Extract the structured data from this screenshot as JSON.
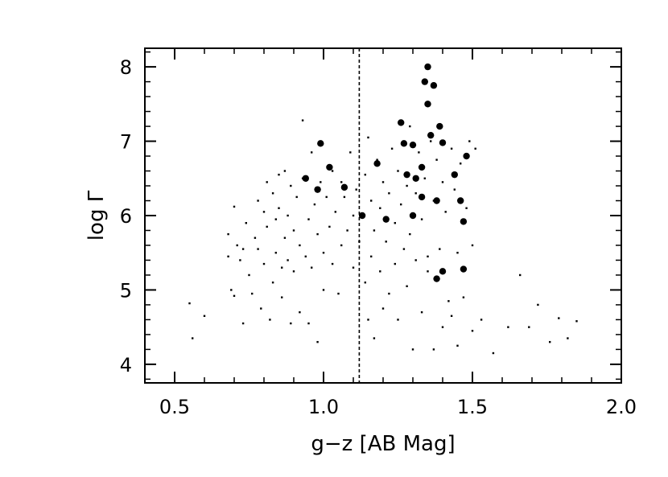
{
  "chart_data": {
    "type": "scatter",
    "xlabel": "g−z [AB Mag]",
    "ylabel": "log Γ",
    "xlim": [
      0.4,
      2.0
    ],
    "ylim": [
      3.75,
      8.25
    ],
    "xticks": [
      0.5,
      1.0,
      1.5,
      2.0
    ],
    "xtick_labels": [
      "0.5",
      "1.0",
      "1.5",
      "2.0"
    ],
    "yticks": [
      4,
      5,
      6,
      7,
      8
    ],
    "ytick_labels": [
      "4",
      "5",
      "6",
      "7",
      "8"
    ],
    "grid": false,
    "reference_line": {
      "x": 1.12,
      "style": "dashed"
    },
    "series": [
      {
        "marker": "small-dot",
        "points": [
          [
            0.55,
            4.82
          ],
          [
            0.56,
            4.35
          ],
          [
            0.6,
            4.65
          ],
          [
            0.68,
            5.75
          ],
          [
            0.68,
            5.45
          ],
          [
            0.69,
            5.0
          ],
          [
            0.7,
            6.12
          ],
          [
            0.7,
            4.92
          ],
          [
            0.71,
            5.6
          ],
          [
            0.72,
            5.4
          ],
          [
            0.73,
            5.55
          ],
          [
            0.73,
            4.55
          ],
          [
            0.74,
            5.9
          ],
          [
            0.75,
            5.2
          ],
          [
            0.76,
            4.95
          ],
          [
            0.77,
            5.7
          ],
          [
            0.78,
            6.2
          ],
          [
            0.78,
            5.55
          ],
          [
            0.79,
            4.75
          ],
          [
            0.8,
            6.05
          ],
          [
            0.8,
            5.35
          ],
          [
            0.81,
            6.45
          ],
          [
            0.81,
            5.85
          ],
          [
            0.82,
            4.6
          ],
          [
            0.83,
            6.3
          ],
          [
            0.83,
            5.1
          ],
          [
            0.84,
            5.95
          ],
          [
            0.84,
            5.5
          ],
          [
            0.85,
            6.55
          ],
          [
            0.85,
            6.1
          ],
          [
            0.86,
            4.9
          ],
          [
            0.86,
            5.3
          ],
          [
            0.87,
            6.6
          ],
          [
            0.87,
            5.7
          ],
          [
            0.88,
            6.0
          ],
          [
            0.88,
            5.4
          ],
          [
            0.89,
            6.4
          ],
          [
            0.89,
            4.55
          ],
          [
            0.9,
            5.8
          ],
          [
            0.9,
            5.25
          ],
          [
            0.91,
            6.25
          ],
          [
            0.92,
            5.6
          ],
          [
            0.92,
            4.7
          ],
          [
            0.93,
            7.28
          ],
          [
            0.93,
            6.5
          ],
          [
            0.94,
            5.45
          ],
          [
            0.95,
            5.95
          ],
          [
            0.95,
            4.55
          ],
          [
            0.96,
            6.85
          ],
          [
            0.96,
            5.3
          ],
          [
            0.97,
            6.15
          ],
          [
            0.98,
            5.75
          ],
          [
            0.98,
            4.3
          ],
          [
            0.99,
            6.45
          ],
          [
            1.0,
            5.5
          ],
          [
            1.0,
            5.0
          ],
          [
            1.01,
            6.25
          ],
          [
            1.02,
            5.85
          ],
          [
            1.03,
            6.6
          ],
          [
            1.03,
            5.35
          ],
          [
            1.04,
            6.05
          ],
          [
            1.05,
            4.95
          ],
          [
            1.06,
            6.45
          ],
          [
            1.06,
            5.6
          ],
          [
            1.07,
            6.25
          ],
          [
            1.08,
            5.8
          ],
          [
            1.09,
            6.85
          ],
          [
            1.1,
            6.0
          ],
          [
            1.1,
            5.3
          ],
          [
            1.11,
            6.35
          ],
          [
            1.12,
            5.65
          ],
          [
            1.14,
            6.55
          ],
          [
            1.14,
            5.1
          ],
          [
            1.15,
            7.05
          ],
          [
            1.15,
            4.6
          ],
          [
            1.16,
            6.2
          ],
          [
            1.16,
            5.45
          ],
          [
            1.17,
            5.8
          ],
          [
            1.17,
            4.35
          ],
          [
            1.18,
            6.75
          ],
          [
            1.19,
            6.1
          ],
          [
            1.19,
            5.25
          ],
          [
            1.2,
            6.45
          ],
          [
            1.2,
            4.75
          ],
          [
            1.21,
            5.65
          ],
          [
            1.22,
            6.3
          ],
          [
            1.22,
            4.95
          ],
          [
            1.23,
            6.9
          ],
          [
            1.24,
            5.9
          ],
          [
            1.24,
            5.35
          ],
          [
            1.25,
            6.6
          ],
          [
            1.25,
            4.6
          ],
          [
            1.26,
            6.15
          ],
          [
            1.27,
            5.55
          ],
          [
            1.28,
            6.4
          ],
          [
            1.28,
            5.05
          ],
          [
            1.29,
            7.2
          ],
          [
            1.29,
            5.75
          ],
          [
            1.3,
            4.2
          ],
          [
            1.31,
            6.3
          ],
          [
            1.31,
            5.4
          ],
          [
            1.32,
            6.85
          ],
          [
            1.33,
            5.95
          ],
          [
            1.33,
            4.7
          ],
          [
            1.34,
            6.5
          ],
          [
            1.35,
            5.45
          ],
          [
            1.35,
            5.25
          ],
          [
            1.36,
            7.0
          ],
          [
            1.37,
            6.2
          ],
          [
            1.37,
            4.2
          ],
          [
            1.38,
            6.75
          ],
          [
            1.39,
            5.55
          ],
          [
            1.4,
            6.45
          ],
          [
            1.4,
            4.5
          ],
          [
            1.41,
            6.05
          ],
          [
            1.42,
            4.85
          ],
          [
            1.43,
            6.9
          ],
          [
            1.43,
            4.65
          ],
          [
            1.44,
            6.35
          ],
          [
            1.45,
            5.5
          ],
          [
            1.45,
            4.25
          ],
          [
            1.46,
            6.7
          ],
          [
            1.47,
            4.9
          ],
          [
            1.48,
            6.1
          ],
          [
            1.49,
            7.0
          ],
          [
            1.5,
            5.6
          ],
          [
            1.5,
            4.45
          ],
          [
            1.51,
            6.9
          ],
          [
            1.53,
            4.6
          ],
          [
            1.57,
            4.15
          ],
          [
            1.62,
            4.5
          ],
          [
            1.66,
            5.2
          ],
          [
            1.69,
            4.5
          ],
          [
            1.72,
            4.8
          ],
          [
            1.76,
            4.3
          ],
          [
            1.79,
            4.62
          ],
          [
            1.82,
            4.35
          ],
          [
            1.85,
            4.58
          ]
        ]
      },
      {
        "marker": "large-dot",
        "points": [
          [
            0.94,
            6.5
          ],
          [
            0.98,
            6.35
          ],
          [
            0.99,
            6.97
          ],
          [
            1.02,
            6.65
          ],
          [
            1.07,
            6.38
          ],
          [
            1.13,
            6.0
          ],
          [
            1.18,
            6.7
          ],
          [
            1.21,
            5.95
          ],
          [
            1.26,
            7.25
          ],
          [
            1.27,
            6.97
          ],
          [
            1.28,
            6.55
          ],
          [
            1.3,
            6.95
          ],
          [
            1.3,
            6.0
          ],
          [
            1.31,
            6.5
          ],
          [
            1.33,
            6.25
          ],
          [
            1.33,
            6.65
          ],
          [
            1.34,
            7.8
          ],
          [
            1.35,
            8.0
          ],
          [
            1.35,
            7.5
          ],
          [
            1.36,
            7.08
          ],
          [
            1.37,
            7.75
          ],
          [
            1.38,
            6.2
          ],
          [
            1.38,
            5.15
          ],
          [
            1.39,
            7.2
          ],
          [
            1.4,
            6.98
          ],
          [
            1.4,
            5.25
          ],
          [
            1.44,
            6.55
          ],
          [
            1.46,
            6.2
          ],
          [
            1.47,
            5.92
          ],
          [
            1.47,
            5.28
          ],
          [
            1.48,
            6.8
          ]
        ]
      }
    ]
  }
}
